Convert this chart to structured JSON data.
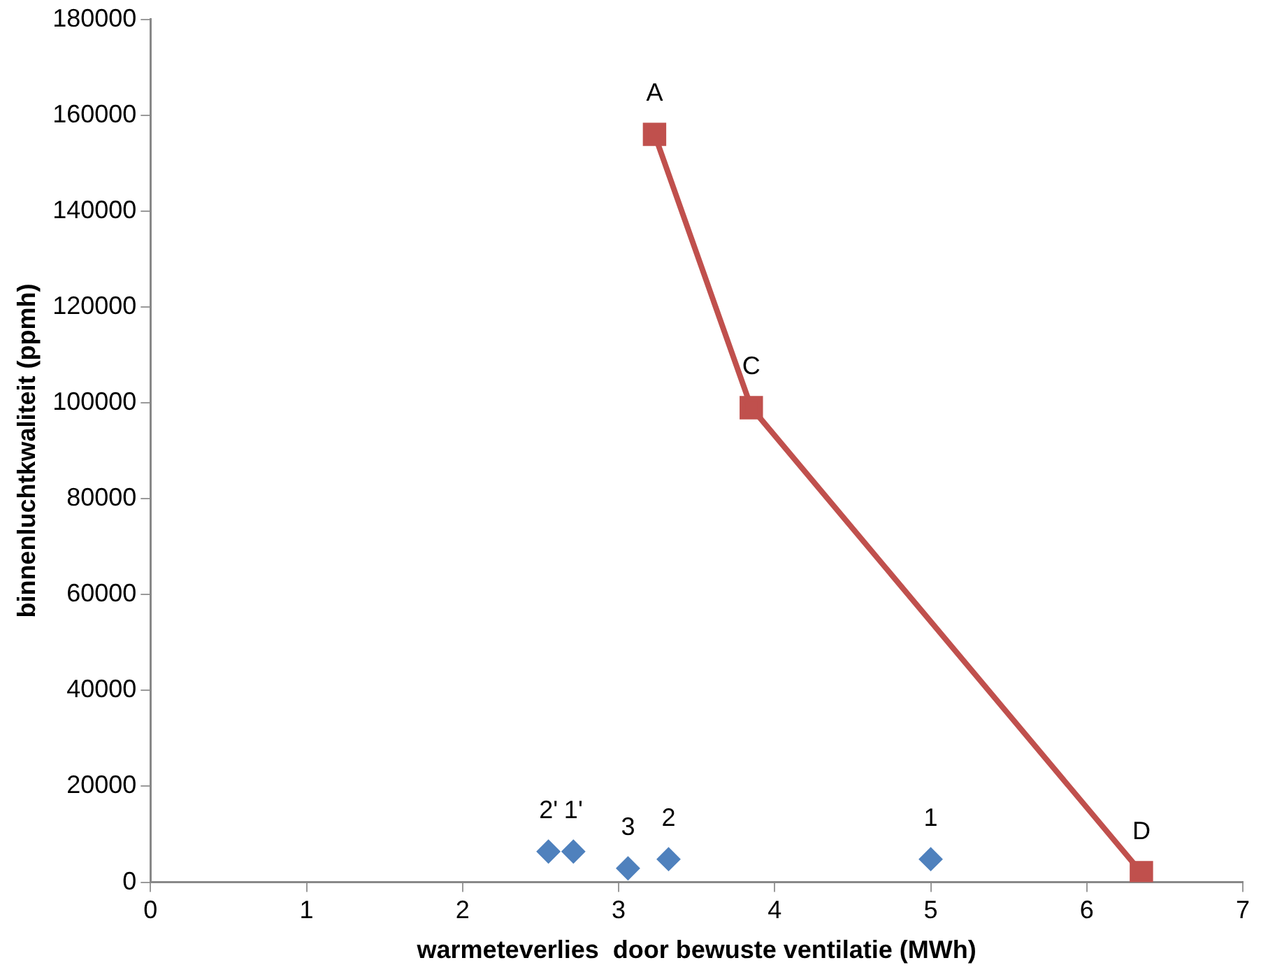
{
  "chart_data": {
    "type": "scatter",
    "xlabel": "warmeteverlies  door bewuste ventilatie (MWh)",
    "ylabel": "binnenluchtkwaliteit (ppmh)",
    "xlim": [
      0,
      7
    ],
    "xticks": [
      0,
      1,
      2,
      3,
      4,
      5,
      6,
      7
    ],
    "ylim": [
      0,
      180000
    ],
    "yticks": [
      0,
      20000,
      40000,
      60000,
      80000,
      100000,
      120000,
      140000,
      160000,
      180000
    ],
    "grid": false,
    "legend": false,
    "series": [
      {
        "type": "line",
        "color": "#c0504d",
        "marker": "square",
        "x": [
          3.23,
          3.85,
          6.35
        ],
        "values": [
          156000,
          99000,
          2000
        ]
      },
      {
        "type": "scatter",
        "color": "#4f81bd",
        "marker": "diamond",
        "x": [
          2.55,
          2.71,
          3.06,
          3.32,
          5.0
        ],
        "values": [
          6400,
          6400,
          2900,
          4800,
          4800
        ]
      }
    ],
    "annotations": [
      {
        "text": "A",
        "x": 3.23,
        "y": 156000
      },
      {
        "text": "C",
        "x": 3.85,
        "y": 99000
      },
      {
        "text": "D",
        "x": 6.35,
        "y": 2000
      },
      {
        "text": "2'",
        "x": 2.55,
        "y": 6400
      },
      {
        "text": "1'",
        "x": 2.71,
        "y": 6400
      },
      {
        "text": "3",
        "x": 3.06,
        "y": 2900
      },
      {
        "text": "2",
        "x": 3.32,
        "y": 4800
      },
      {
        "text": "1",
        "x": 5.0,
        "y": 4800
      }
    ]
  }
}
